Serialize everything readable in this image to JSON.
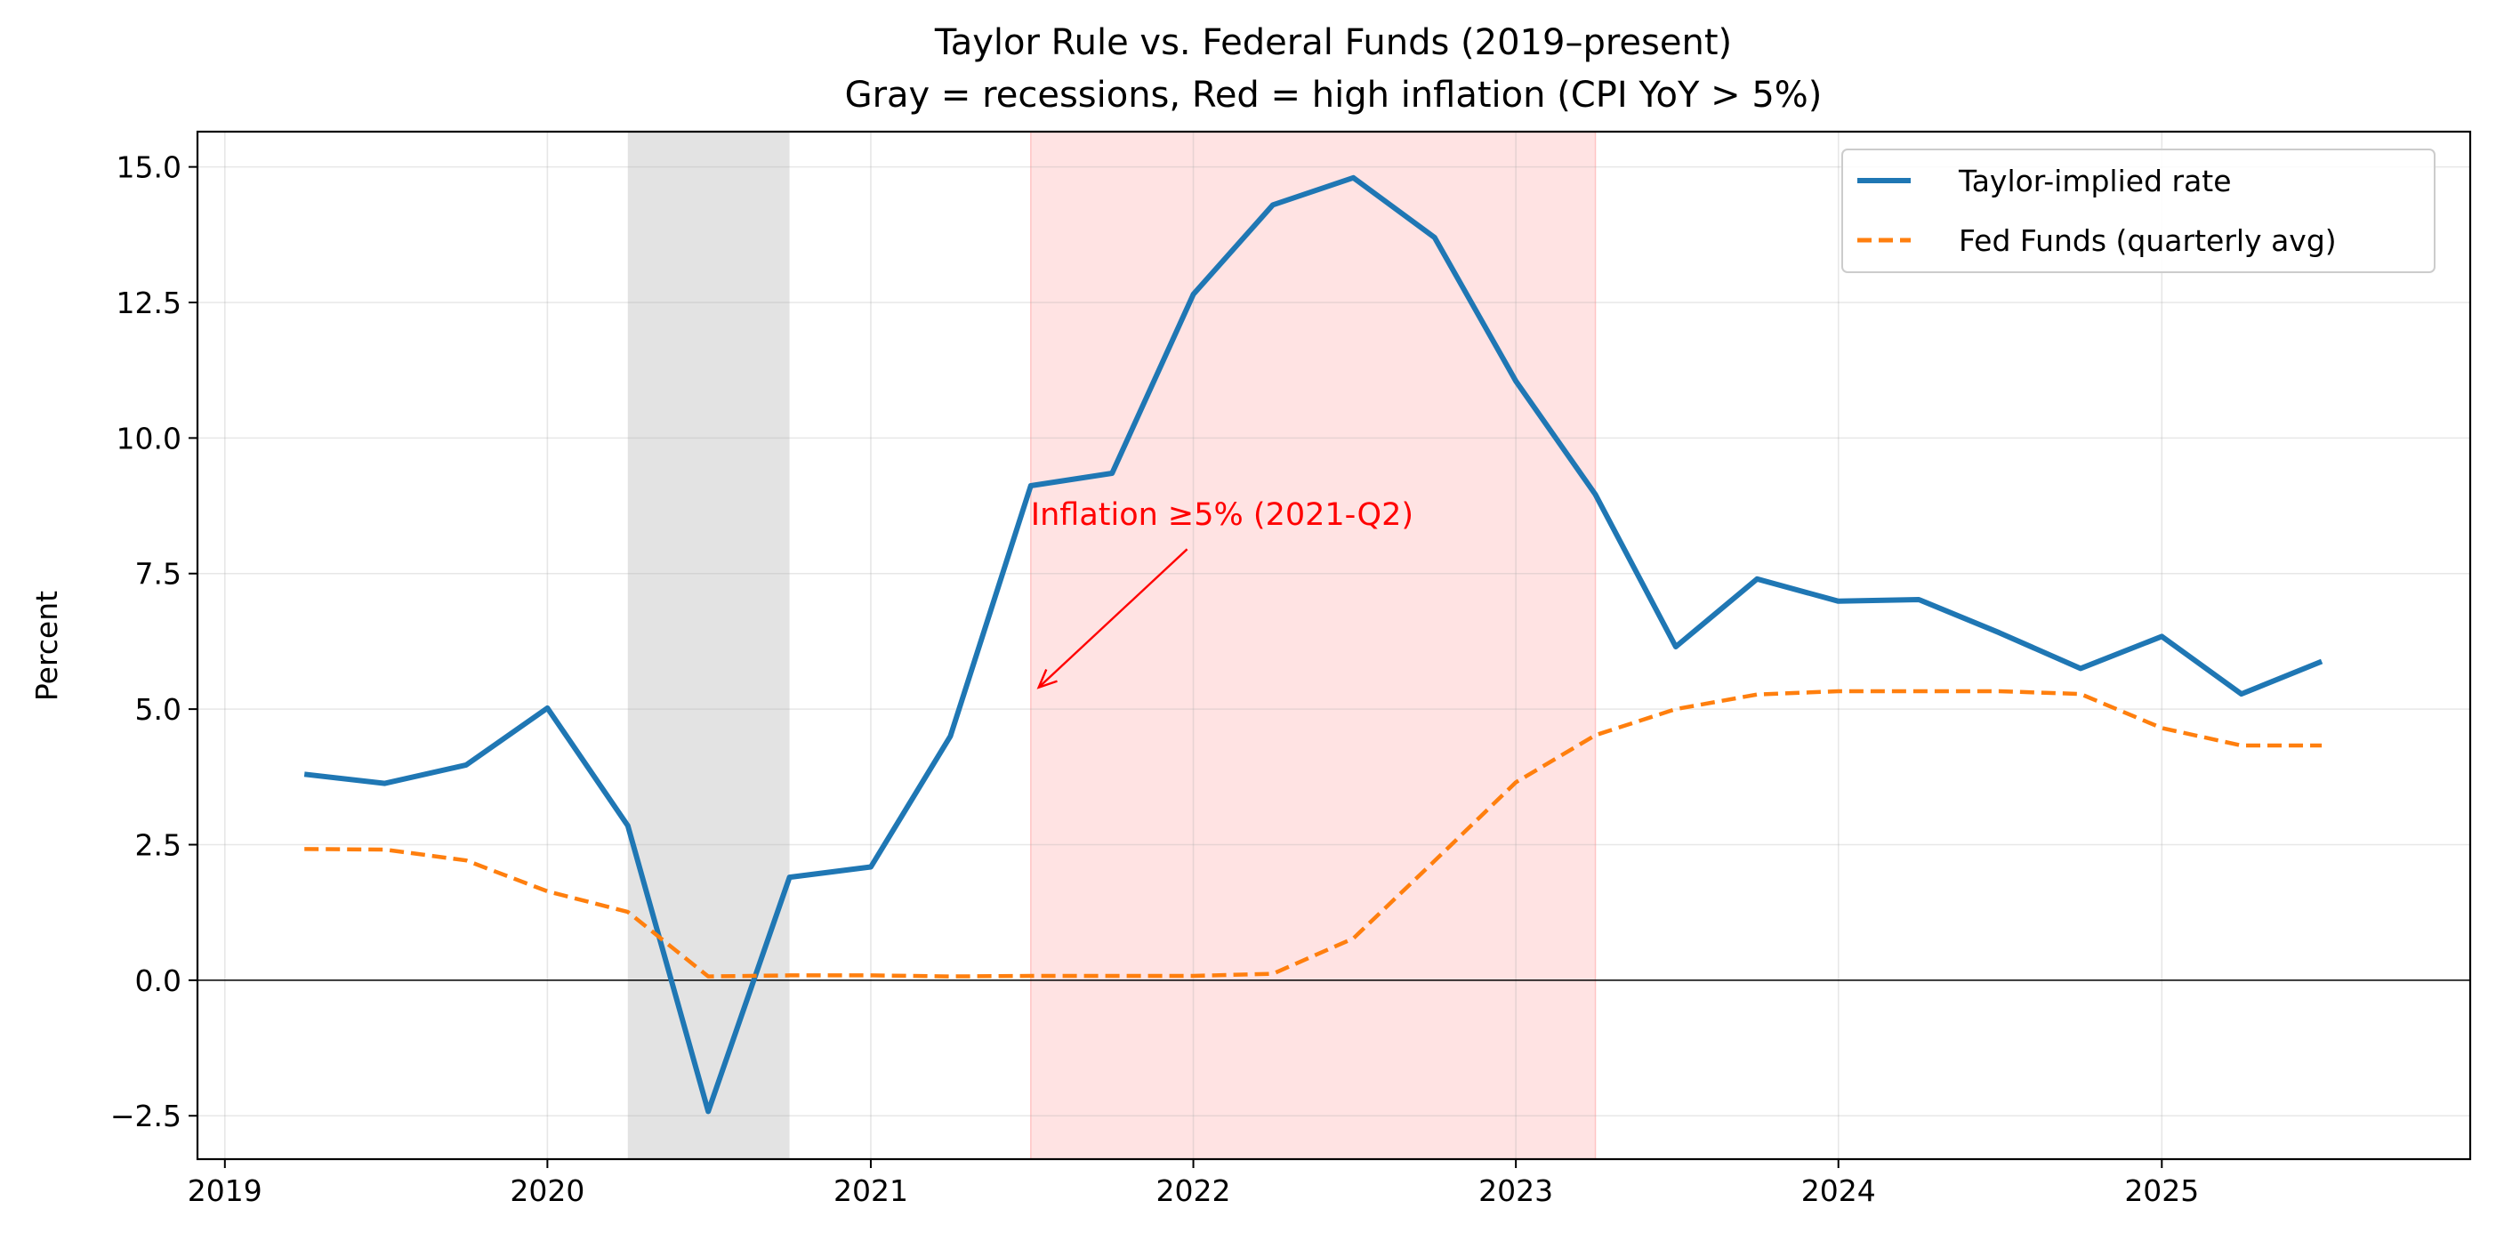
{
  "chart_data": {
    "type": "line",
    "title": "Taylor Rule vs. Federal Funds (2019–present)",
    "subtitle": "Gray = recessions, Red = high inflation (CPI YoY > 5%)",
    "xlabel": "",
    "ylabel": "Percent",
    "xlim": [
      "2018-12-01",
      "2025-12-16"
    ],
    "ylim": [
      -3.3,
      15.65
    ],
    "x_ticks": [
      "2019",
      "2020",
      "2021",
      "2022",
      "2023",
      "2024",
      "2025"
    ],
    "y_ticks": [
      "−2.5",
      "0.0",
      "2.5",
      "5.0",
      "7.5",
      "10.0",
      "12.5",
      "15.0"
    ],
    "grid": true,
    "legend_position": "top-right",
    "zero_line": true,
    "x": [
      "2019-04-01",
      "2019-07-01",
      "2019-10-01",
      "2020-01-01",
      "2020-04-01",
      "2020-07-01",
      "2020-10-01",
      "2021-01-01",
      "2021-04-01",
      "2021-07-01",
      "2021-10-01",
      "2022-01-01",
      "2022-04-01",
      "2022-07-01",
      "2022-10-01",
      "2023-01-01",
      "2023-04-01",
      "2023-07-01",
      "2023-10-01",
      "2024-01-01",
      "2024-04-01",
      "2024-07-01",
      "2024-10-01",
      "2025-01-01",
      "2025-04-01",
      "2025-07-01"
    ],
    "series": [
      {
        "name": "Taylor-implied rate",
        "color": "#1f77b4",
        "style": "solid",
        "values": [
          3.8,
          3.63,
          3.97,
          5.02,
          2.85,
          -2.42,
          1.9,
          2.09,
          4.5,
          9.12,
          9.35,
          12.65,
          14.3,
          14.8,
          13.7,
          11.05,
          8.96,
          6.15,
          7.4,
          6.99,
          7.02,
          6.41,
          5.75,
          6.34,
          5.28,
          5.88
        ]
      },
      {
        "name": "Fed Funds (quarterly avg)",
        "color": "#ff7f0e",
        "style": "dashed",
        "values": [
          2.42,
          2.41,
          2.21,
          1.64,
          1.26,
          0.07,
          0.09,
          0.09,
          0.07,
          0.08,
          0.08,
          0.08,
          0.12,
          0.77,
          2.2,
          3.65,
          4.52,
          5.0,
          5.27,
          5.33,
          5.33,
          5.33,
          5.28,
          4.65,
          4.33,
          4.33
        ]
      }
    ],
    "shaded_regions": [
      {
        "kind": "recession",
        "start": "2020-04-01",
        "end": "2020-10-01",
        "color": "#808080"
      },
      {
        "kind": "high-inflation",
        "start": "2021-07-01",
        "end": "2023-04-01",
        "color": "#ff9999"
      }
    ],
    "annotations": [
      {
        "text": "Inflation ≥5% (2021-Q2)",
        "color": "#ff0000",
        "text_at": {
          "x": "2021-07-01",
          "y": 8.4
        },
        "arrow_from": {
          "x": "2021-12-25",
          "y": 7.95
        },
        "arrow_to": {
          "x": "2021-07-10",
          "y": 5.4
        }
      }
    ]
  }
}
